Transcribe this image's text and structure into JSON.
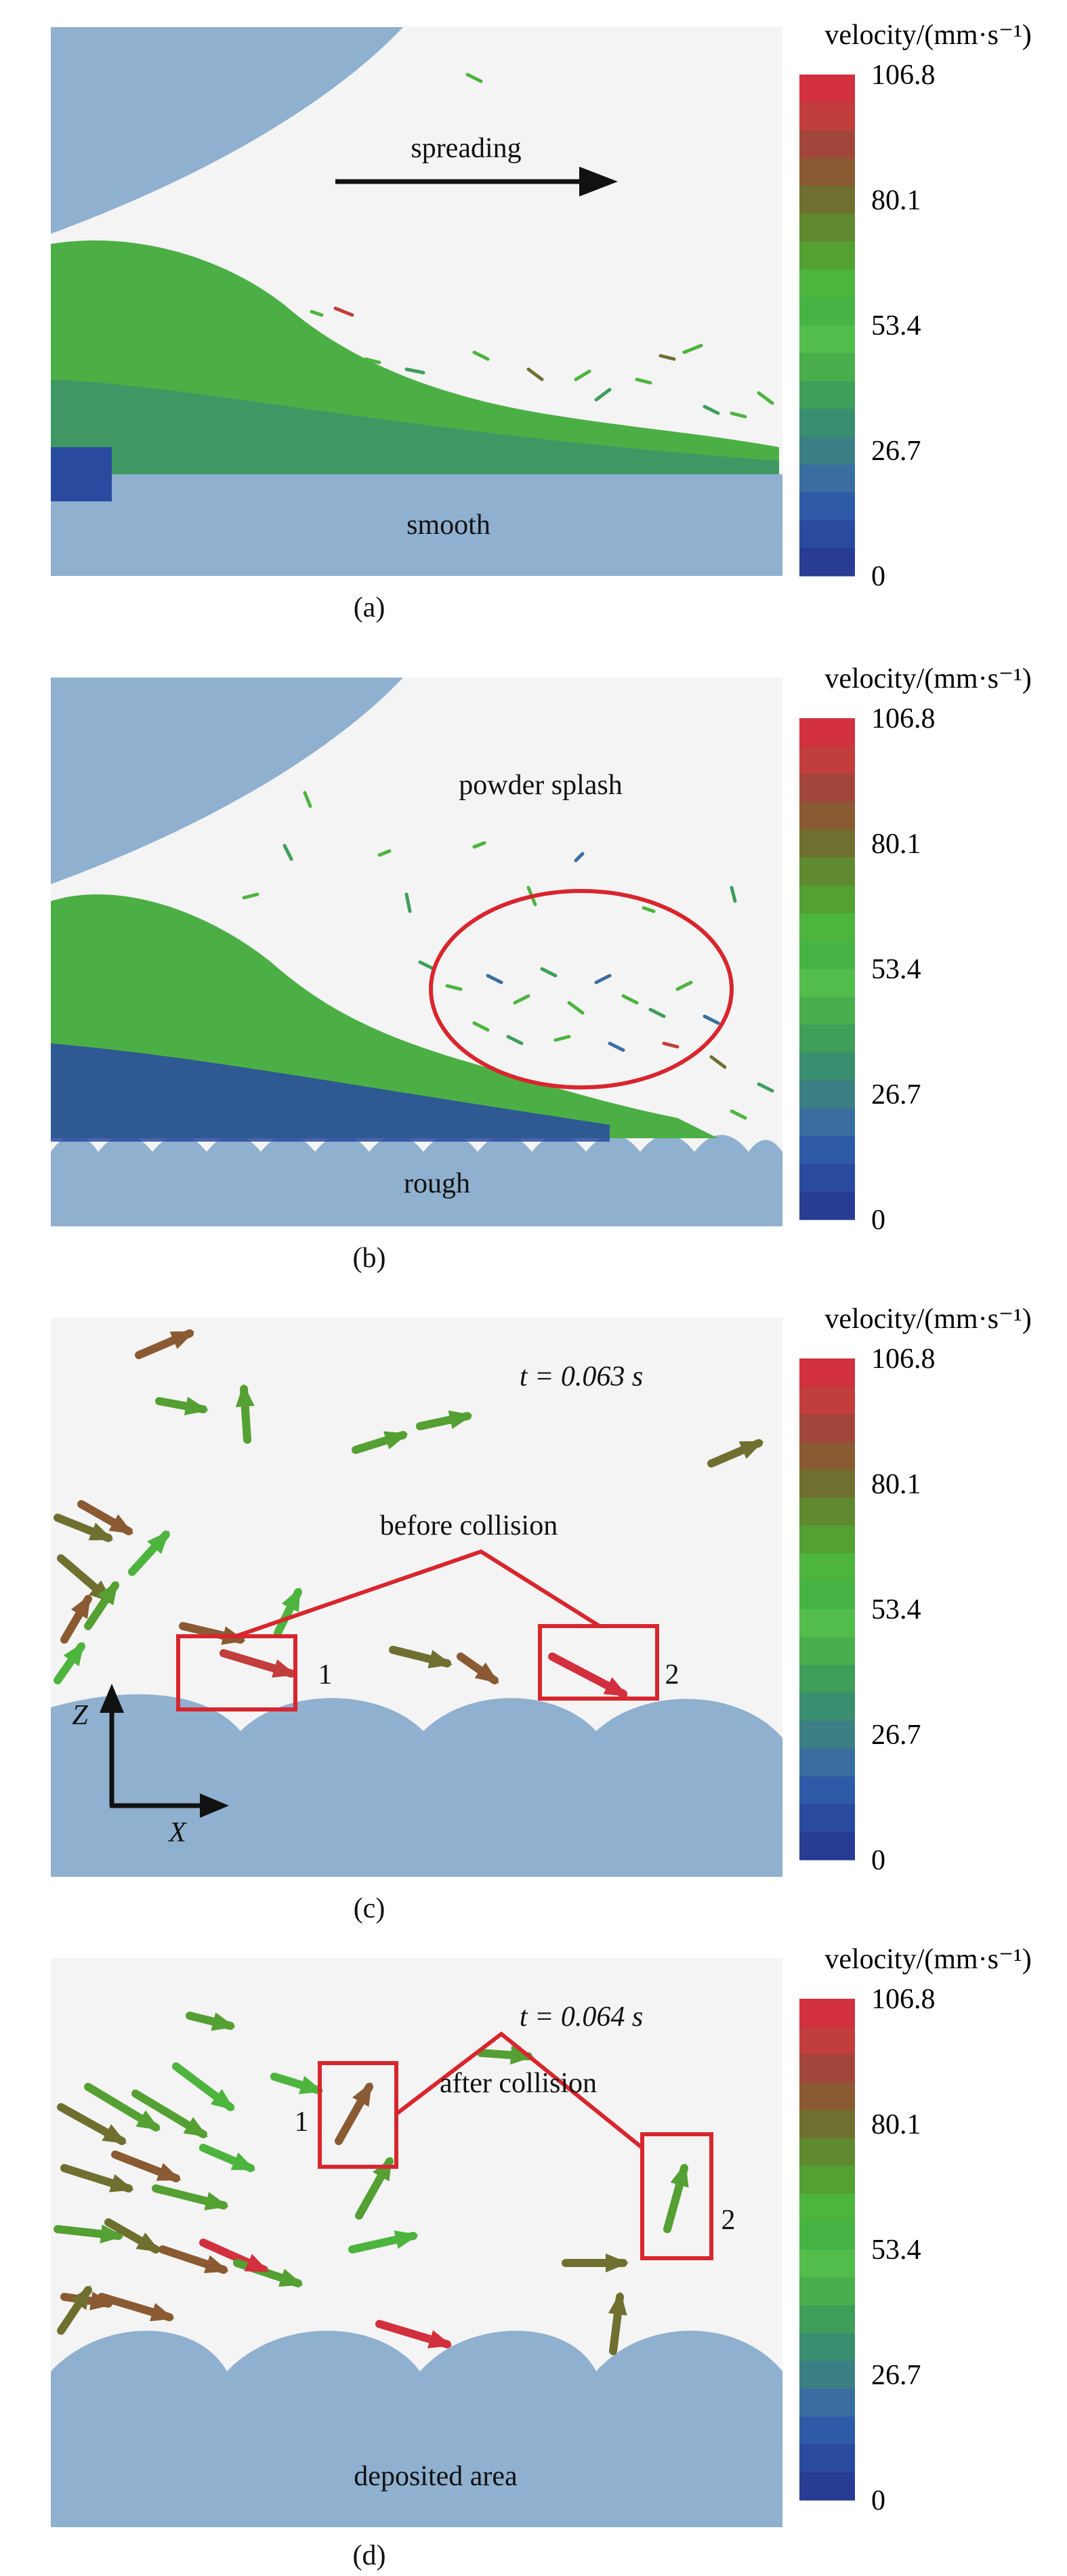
{
  "colorbar": {
    "title": "velocity/(mm·s⁻¹)",
    "ticks": [
      "106.8",
      "80.1",
      "53.4",
      "26.7",
      "0"
    ],
    "colors": [
      "#d2303e",
      "#c23e3c",
      "#a2453a",
      "#8a5a32",
      "#6f7030",
      "#5f8a2f",
      "#54a033",
      "#4db43e",
      "#46b445",
      "#52bd4b",
      "#4aae4c",
      "#3f9e5a",
      "#3a8e70",
      "#3b7f84",
      "#3a6ea0",
      "#2f5aa8",
      "#2a4aa0",
      "#283c94"
    ]
  },
  "panels": [
    {
      "id": "a",
      "caption": "(a)",
      "surface_label": "smooth",
      "annotations": [
        "spreading"
      ]
    },
    {
      "id": "b",
      "caption": "(b)",
      "surface_label": "rough",
      "annotations": [
        "powder splash"
      ]
    },
    {
      "id": "c",
      "caption": "(c)",
      "time_label": "t = 0.063 s",
      "annotations": [
        "before collision"
      ],
      "box_labels": [
        "1",
        "2"
      ],
      "axes": {
        "z": "Z",
        "x": "X"
      }
    },
    {
      "id": "d",
      "caption": "(d)",
      "time_label": "t = 0.064 s",
      "surface_label": "deposited area",
      "annotations": [
        "after collision"
      ],
      "box_labels": [
        "1",
        "2"
      ]
    }
  ],
  "theme": {
    "substrate": "#8fb0cf",
    "blade": "#8fb0cf",
    "panel_bg": "#f4f4f4",
    "highlight": "#d8262e"
  }
}
